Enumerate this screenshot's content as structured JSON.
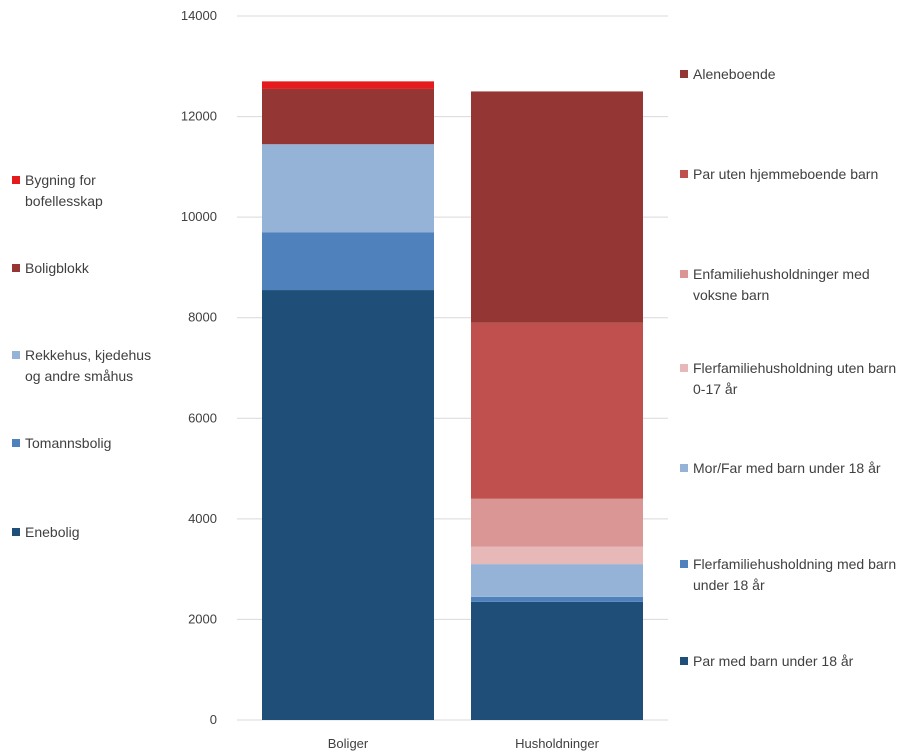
{
  "chart_data": {
    "type": "bar",
    "stacked": true,
    "categories": [
      "Boliger",
      "Husholdninger"
    ],
    "ylim": [
      0,
      14000
    ],
    "yticks": [
      0,
      2000,
      4000,
      6000,
      8000,
      10000,
      12000,
      14000
    ],
    "grid": true,
    "title": "",
    "xlabel": "",
    "ylabel": "",
    "series": [
      {
        "name": "Enebolig",
        "color": "#1f4e79",
        "values": [
          8550,
          0
        ],
        "legend": "left"
      },
      {
        "name": "Tomannsbolig",
        "color": "#4f81bd",
        "values": [
          1150,
          0
        ],
        "legend": "left"
      },
      {
        "name": "Rekkehus, kjedehus og andre småhus",
        "color": "#95b3d7",
        "values": [
          1750,
          0
        ],
        "legend": "left"
      },
      {
        "name": "Boligblokk",
        "color": "#943634",
        "values": [
          1100,
          0
        ],
        "legend": "left"
      },
      {
        "name": "Bygning for bofellesskap",
        "color": "#e41a1c",
        "values": [
          150,
          0
        ],
        "legend": "left"
      },
      {
        "name": "Par med barn under 18 år",
        "color": "#1f4e79",
        "values": [
          0,
          2350
        ],
        "legend": "right"
      },
      {
        "name": "Flerfamiliehusholdning med barn under 18 år",
        "color": "#4f81bd",
        "values": [
          0,
          100
        ],
        "legend": "right"
      },
      {
        "name": "Mor/Far med barn under 18 år",
        "color": "#95b3d7",
        "values": [
          0,
          650
        ],
        "legend": "right"
      },
      {
        "name": "Flerfamiliehusholdning uten barn 0-17 år",
        "color": "#e6b9b8",
        "values": [
          0,
          350
        ],
        "legend": "right"
      },
      {
        "name": "Enfamiliehusholdninger med voksne barn",
        "color": "#d99694",
        "values": [
          0,
          950
        ],
        "legend": "right"
      },
      {
        "name": "Par uten hjemmeboende barn",
        "color": "#c0504d",
        "values": [
          0,
          3500
        ],
        "legend": "right"
      },
      {
        "name": "Aleneboende",
        "color": "#943634",
        "values": [
          0,
          4600
        ],
        "legend": "right"
      }
    ]
  }
}
